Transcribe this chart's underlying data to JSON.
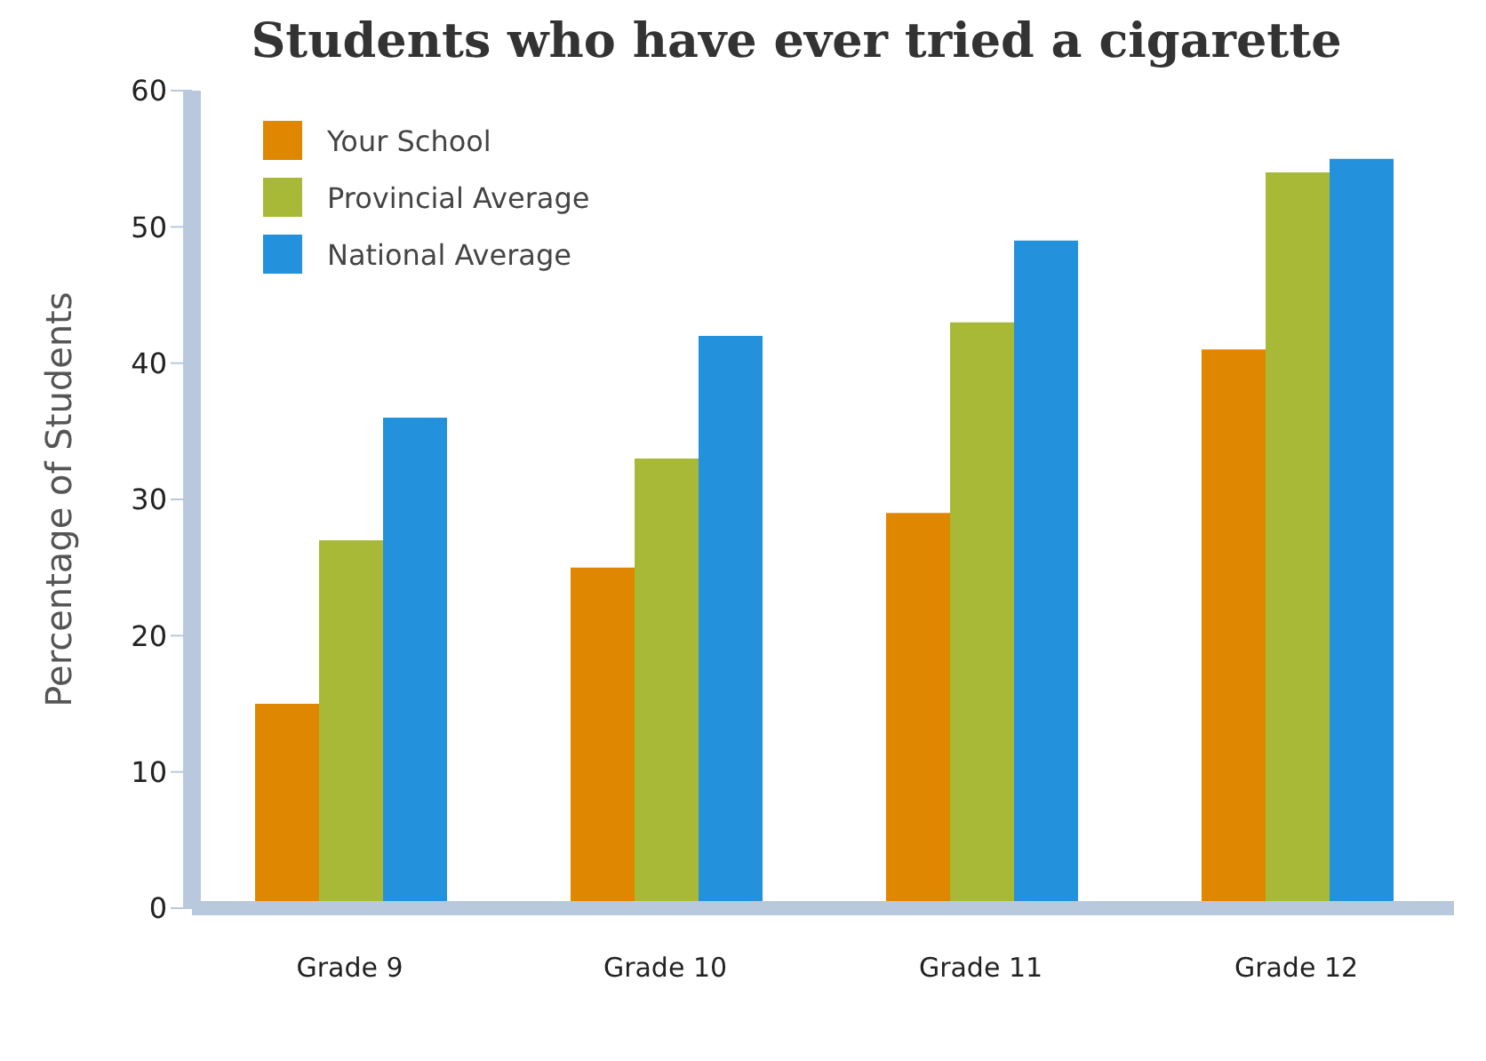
{
  "chart_data": {
    "type": "bar",
    "title": "Students who have ever tried a cigarette",
    "ylabel": "Percentage of Students",
    "categories": [
      "Grade 9",
      "Grade 10",
      "Grade 11",
      "Grade 12"
    ],
    "series": [
      {
        "name": "Your School",
        "color": "#e08700",
        "values": [
          15,
          25,
          29,
          41
        ]
      },
      {
        "name": "Provincial Average",
        "color": "#a7b936",
        "values": [
          27,
          33,
          43,
          54
        ]
      },
      {
        "name": "National Average",
        "color": "#2391db",
        "values": [
          36,
          42,
          49,
          55
        ]
      }
    ],
    "ylim": [
      0,
      60
    ],
    "yticks": [
      0,
      10,
      20,
      30,
      40,
      50,
      60
    ],
    "grid": false,
    "legend": "top left"
  }
}
